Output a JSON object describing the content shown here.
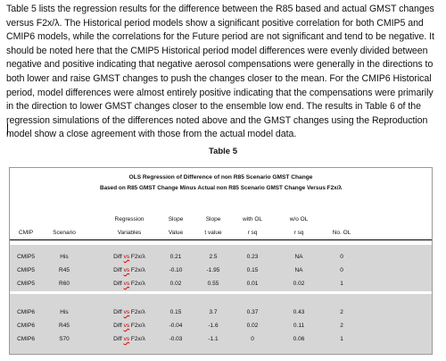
{
  "paragraph": "Table 5 lists the regression results for the difference between the R85 based and actual GMST changes versus F2x/λ.  The Historical period models show a significant positive correlation for both CMIP5 and CMIP6 models, while the correlations for the Future period are not significant and tend to be negative.  It should be noted here that the CMIP5 Historical period model differences were evenly divided between negative and positive indicating that negative aerosol compensations were generally in the directions to both lower and raise GMST changes to push the changes closer to the mean.  For the CMIP6 Historical period, model differences were almost entirely positive indicating that the compensations were primarily in the direction to lower GMST changes closer to the ensemble low end.  The results in Table 6 of the regression simulations of the differences noted above and the GMST changes using the Reproduction model show a close agreement with those from the actual model data.",
  "table_label": "Table 5",
  "table": {
    "title": "OLS Regression of Difference of non R85 Scenario GMST Change",
    "subtitle": "Based on R85 GMST Change Minus Actual non R85 Scenario GMST Change Versus F2x/λ",
    "header_top": [
      "",
      "",
      "Regression",
      "Slope",
      "Slope",
      "with OL",
      "w/o OL",
      ""
    ],
    "header_bottom": [
      "CMIP",
      "Scenario",
      "Variables",
      "Value",
      "t value",
      "r sq",
      "r sq",
      "No. OL"
    ],
    "variable_prefix": "Diff",
    "variable_vs": "vs",
    "variable_suffix": "F2x/λ",
    "rows": [
      {
        "cmip": "CMIP5",
        "scenario": "His",
        "slope": "0.21",
        "t": "2.5",
        "r_ol": "0.23",
        "r_wo": "NA",
        "no_ol": "0"
      },
      {
        "cmip": "CMIP5",
        "scenario": "R45",
        "slope": "-0.10",
        "t": "-1.95",
        "r_ol": "0.15",
        "r_wo": "NA",
        "no_ol": "0"
      },
      {
        "cmip": "CMIP5",
        "scenario": "R60",
        "slope": "0.02",
        "t": "0.55",
        "r_ol": "0.01",
        "r_wo": "0.02",
        "no_ol": "1"
      },
      {
        "cmip": "CMIP6",
        "scenario": "His",
        "slope": "0.15",
        "t": "3.7",
        "r_ol": "0.37",
        "r_wo": "0.43",
        "no_ol": "2"
      },
      {
        "cmip": "CMIP6",
        "scenario": "R45",
        "slope": "-0.04",
        "t": "-1.6",
        "r_ol": "0.02",
        "r_wo": "0.11",
        "no_ol": "2"
      },
      {
        "cmip": "CMIP6",
        "scenario": "S70",
        "slope": "-0.03",
        "t": "-1.1",
        "r_ol": "0",
        "r_wo": "0.06",
        "no_ol": "1"
      }
    ]
  }
}
